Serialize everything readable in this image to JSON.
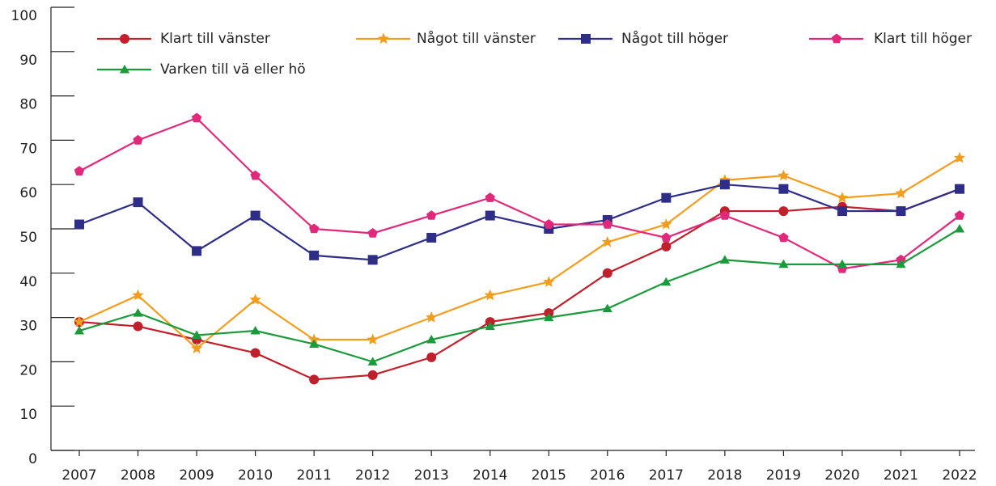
{
  "chart_data": {
    "type": "line",
    "categories": [
      "2007",
      "2008",
      "2009",
      "2010",
      "2011",
      "2012",
      "2013",
      "2014",
      "2015",
      "2016",
      "2017",
      "2018",
      "2019",
      "2020",
      "2021",
      "2022"
    ],
    "series": [
      {
        "name": "Klart till vänster",
        "color": "#c0202b",
        "marker": "circle",
        "values": [
          29,
          28,
          25,
          22,
          16,
          17,
          21,
          29,
          31,
          40,
          46,
          54,
          54,
          55,
          54,
          59
        ]
      },
      {
        "name": "Något till vänster",
        "color": "#f29d1e",
        "marker": "star",
        "values": [
          29,
          35,
          23,
          34,
          25,
          25,
          30,
          35,
          38,
          47,
          51,
          61,
          62,
          57,
          58,
          66
        ]
      },
      {
        "name": "Något till höger",
        "color": "#2e2e87",
        "marker": "square",
        "values": [
          51,
          56,
          45,
          53,
          44,
          43,
          48,
          53,
          50,
          52,
          57,
          60,
          59,
          54,
          54,
          59
        ]
      },
      {
        "name": "Klart till höger",
        "color": "#e0297a",
        "marker": "pentagon",
        "values": [
          63,
          70,
          75,
          62,
          50,
          49,
          53,
          57,
          51,
          51,
          48,
          53,
          48,
          41,
          43,
          53
        ]
      },
      {
        "name": "Varken till vä eller hö",
        "color": "#1a9a3a",
        "marker": "triangle",
        "values": [
          27,
          31,
          26,
          27,
          24,
          20,
          25,
          28,
          30,
          32,
          38,
          43,
          42,
          42,
          42,
          50
        ]
      }
    ],
    "ylim": [
      0,
      100
    ],
    "yticks": [
      0,
      10,
      20,
      30,
      40,
      50,
      60,
      70,
      80,
      90,
      100
    ]
  }
}
